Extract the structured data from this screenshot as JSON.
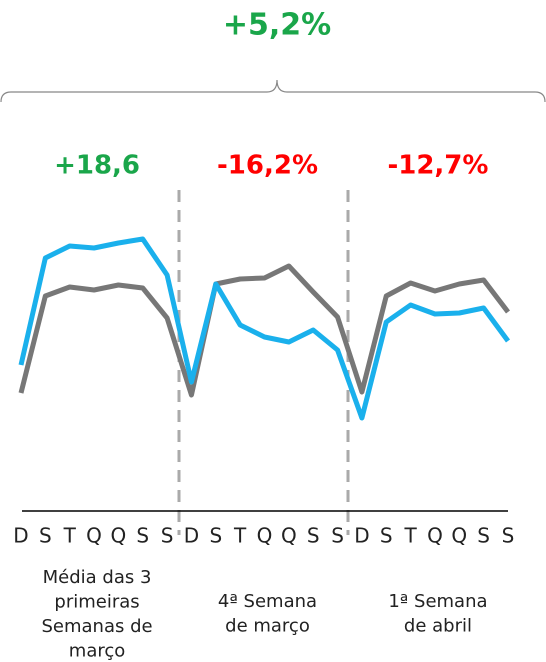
{
  "chart_data": {
    "type": "line",
    "total_label": "+5,2%",
    "total_color": "#1aa64a",
    "categories": [
      "D",
      "S",
      "T",
      "Q",
      "Q",
      "S",
      "S",
      "D",
      "S",
      "T",
      "Q",
      "Q",
      "S",
      "S",
      "D",
      "S",
      "T",
      "Q",
      "Q",
      "S",
      "S"
    ],
    "series": [
      {
        "color": "#1ab0ec",
        "values": [
          46,
          88.8,
          93.6,
          92.8,
          94.8,
          96.4,
          82,
          39.2,
          78.4,
          62,
          57.2,
          55.2,
          60,
          52,
          24.8,
          63.2,
          70,
          66.4,
          66.8,
          68.8,
          55.6
        ]
      },
      {
        "color": "#777777",
        "values": [
          34.8,
          73.6,
          77.2,
          76,
          78,
          76.8,
          64.8,
          34,
          78.4,
          80.4,
          80.8,
          85.6,
          75.2,
          65.2,
          35.2,
          73.6,
          78.8,
          75.6,
          78.4,
          80,
          67.2
        ]
      }
    ],
    "groups": [
      {
        "label": "+18,6",
        "color": "#1aa64a",
        "caption": [
          "Média das 3",
          "primeiras",
          "Semanas de",
          "março"
        ]
      },
      {
        "label": "-16,2%",
        "color": "#ff0000",
        "caption": [
          "4ª Semana",
          "de março"
        ]
      },
      {
        "label": "-12,7%",
        "color": "#ff0000",
        "caption": [
          "1ª Semana",
          "de abril"
        ]
      }
    ],
    "ylim": [
      0,
      100
    ]
  }
}
